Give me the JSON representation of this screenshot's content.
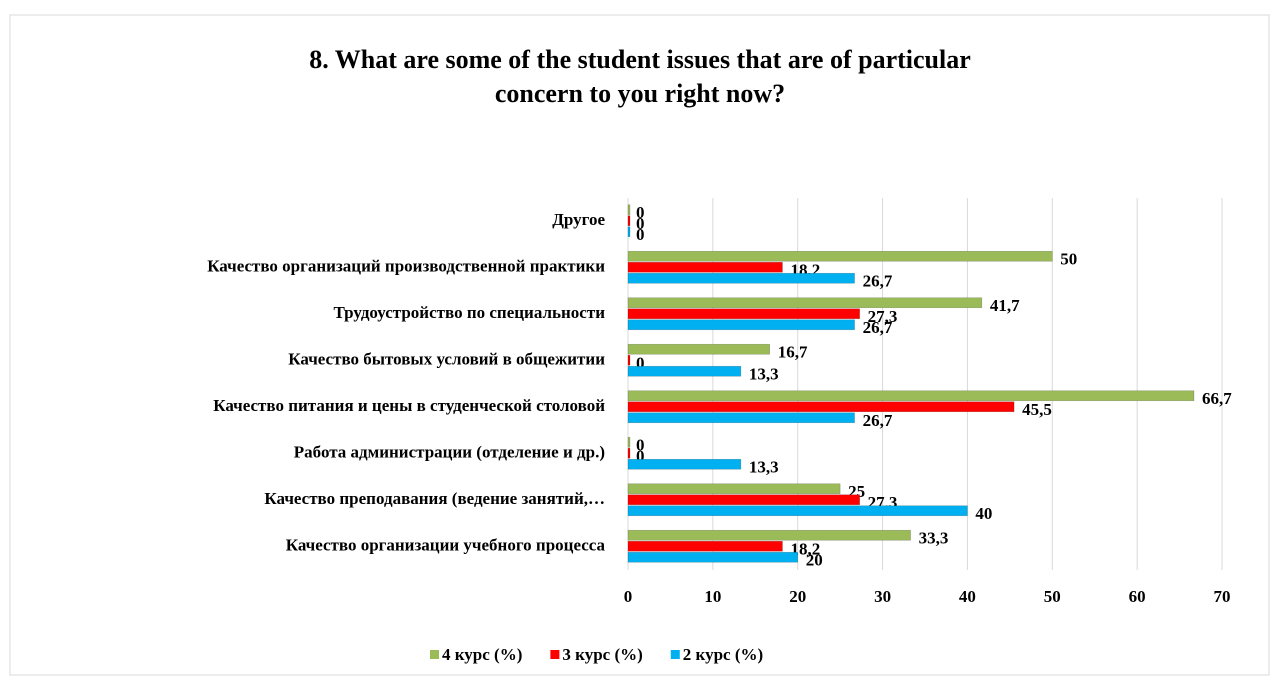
{
  "chart_data": {
    "type": "hbar",
    "title": "8. What are some of the student issues that are of particular concern to you right now?",
    "categories": [
      "Другое",
      "Качество организаций производственной практики",
      "Трудоустройство по специальности",
      "Качество бытовых условий в общежитии",
      "Качество питания и цены в студенческой столовой",
      "Работа администрации (отделение и др.)",
      "Качество преподавания (ведение занятий,…",
      "Качество организации учебного процесса"
    ],
    "series": [
      {
        "name": "4 курс (%)",
        "color": "#9bbb59",
        "values": [
          0,
          50,
          41.7,
          16.7,
          66.7,
          0,
          25,
          33.3
        ],
        "value_labels": [
          "0",
          "50",
          "41,7",
          "16,7",
          "66,7",
          "0",
          "25",
          "33,3"
        ]
      },
      {
        "name": "3 курс (%)",
        "color": "#ff0000",
        "values": [
          0,
          18.2,
          27.3,
          0,
          45.5,
          0,
          27.3,
          18.2
        ],
        "value_labels": [
          "0",
          "18,2",
          "27,3",
          "0",
          "45,5",
          "0",
          "27,3",
          "18,2"
        ]
      },
      {
        "name": "2 курс (%)",
        "color": "#00b0f0",
        "values": [
          0,
          26.7,
          26.7,
          13.3,
          26.7,
          13.3,
          40,
          20
        ],
        "value_labels": [
          "0",
          "26,7",
          "26,7",
          "13,3",
          "26,7",
          "13,3",
          "40",
          "20"
        ]
      }
    ],
    "xlim": [
      0,
      70
    ],
    "xticks": [
      0,
      10,
      20,
      30,
      40,
      50,
      60,
      70
    ],
    "grid": true,
    "legend": "bottom"
  }
}
